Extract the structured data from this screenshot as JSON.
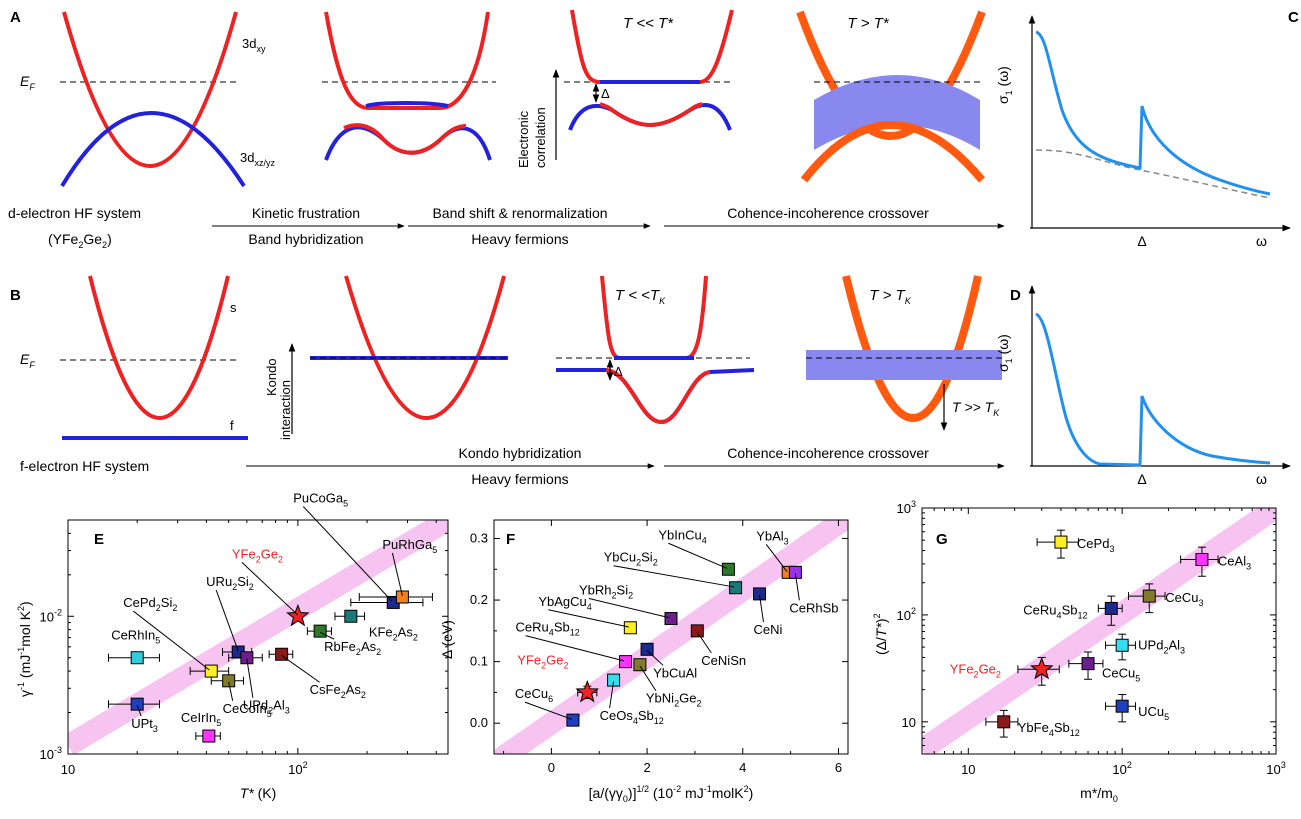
{
  "panels": {
    "A": "A",
    "B": "B",
    "C": "C",
    "D": "D",
    "E": "E",
    "F": "F",
    "G": "G"
  },
  "row_a": {
    "band_upper": "3d",
    "band_upper_sub": "xy",
    "band_lower": "3d",
    "band_lower_sub": "xz/yz",
    "ef": "E",
    "ef_sub": "F",
    "title_low_t": "T << T*",
    "title_high_t": "T > T*",
    "delta": "Δ",
    "corr_line1": "Electronic",
    "corr_line2": "correlation",
    "system_line1": "d-electron HF system",
    "system_line2_pre": "(YFe",
    "system_line2_sub1": "2",
    "system_line2_mid": "Ge",
    "system_line2_sub2": "2",
    "system_line2_post": ")",
    "arrow1_top": "Kinetic frustration",
    "arrow1_bottom": "Band hybridization",
    "arrow2_top": "Band shift & renormalization",
    "arrow2_bottom": "Heavy fermions",
    "arrow3_top": "Cohence-incoherence crossover"
  },
  "row_b": {
    "band_s": "s",
    "band_f": "f",
    "ef": "E",
    "ef_sub": "F",
    "kondo_line1": "Kondo",
    "kondo_line2": "interaction",
    "title_low_t": "T < <T",
    "title_low_t_sub": "K",
    "title_high_t": "T > T",
    "title_high_t_sub": "K",
    "down_label": "T >> T",
    "down_label_sub": "K",
    "delta": "Δ",
    "system": "f-electron HF system",
    "arrow2_top": "Kondo  hybridization",
    "arrow2_bottom": "Heavy fermions",
    "arrow3_top": "Cohence-incoherence crossover"
  },
  "conductivity": {
    "ylabel": "σ",
    "ylabel_sub": "1",
    "ylabel_post": " (ω)",
    "x_gap": "Δ",
    "x_omega": "ω"
  },
  "chart_data": [
    {
      "panel": "E",
      "type": "scatter",
      "xlabel": "T* (K)",
      "ylabel": "γ-1 (mJ-1mol K2)",
      "xscale": "log",
      "yscale": "log",
      "xlim": [
        10,
        450
      ],
      "ylim": [
        0.001,
        0.05
      ],
      "xticks": [
        "10",
        "10^2"
      ],
      "yticks": [
        "10^-3",
        "10^-2"
      ],
      "trend_band": [
        [
          10,
          0.00115
        ],
        [
          450,
          0.05
        ]
      ],
      "points": [
        {
          "name": "UPt3",
          "label": [
            "UPt",
            "3"
          ],
          "x": 20,
          "y": 0.0023,
          "xerr": 5,
          "color": "#1f3fbf"
        },
        {
          "name": "CeRhIn5",
          "label": [
            "CeRhIn",
            "5"
          ],
          "x": 20,
          "y": 0.005,
          "xerr": 5,
          "color": "#33ccdd"
        },
        {
          "name": "CeIrIn5",
          "label": [
            "CeIrIn",
            "5"
          ],
          "x": 41,
          "y": 0.00135,
          "xerr": 5,
          "color": "#ff33ff"
        },
        {
          "name": "CePd2Si2",
          "label": [
            "CePd",
            "2",
            "Si",
            "2"
          ],
          "x": 42,
          "y": 0.004,
          "xerr": 8,
          "color": "#ffee22"
        },
        {
          "name": "CeCoIn5",
          "label": [
            "CeCoIn",
            "5"
          ],
          "x": 50,
          "y": 0.0034,
          "xerr": 8,
          "color": "#807a2a"
        },
        {
          "name": "URu2Si2",
          "label": [
            "URu",
            "2",
            "Si",
            "2"
          ],
          "x": 55,
          "y": 0.0055,
          "xerr": 8,
          "color": "#1c2a8c"
        },
        {
          "name": "UPd2Al3",
          "label": [
            "UPd",
            "2",
            "Al",
            "3"
          ],
          "x": 60,
          "y": 0.005,
          "xerr": 10,
          "color": "#6a1f8a"
        },
        {
          "name": "CsFe2As2",
          "label": [
            "CsFe",
            "2",
            "As",
            "2"
          ],
          "x": 85,
          "y": 0.0053,
          "xerr": 10,
          "color": "#8a1a1a"
        },
        {
          "name": "YFe2Ge2",
          "label": [
            "YFe",
            "2",
            "Ge",
            "2"
          ],
          "x": 100,
          "y": 0.01,
          "xerr": 0,
          "color": "#ee2222",
          "star": true
        },
        {
          "name": "RbFe2As2",
          "label": [
            "RbFe",
            "2",
            "As",
            "2"
          ],
          "x": 125,
          "y": 0.0078,
          "xerr": 15,
          "color": "#2a7a2a"
        },
        {
          "name": "KFe2As2",
          "label": [
            "KFe",
            "2",
            "As",
            "2"
          ],
          "x": 170,
          "y": 0.01,
          "xerr": 25,
          "color": "#1a7a7a"
        },
        {
          "name": "PuCoGa5",
          "label": [
            "PuCoGa",
            "5"
          ],
          "x": 260,
          "y": 0.0126,
          "xerr": 90,
          "color": "#1c2a8c"
        },
        {
          "name": "PuRhGa5",
          "label": [
            "PuRhGa",
            "5"
          ],
          "x": 285,
          "y": 0.0138,
          "xerr": 100,
          "color": "#f08020"
        }
      ]
    },
    {
      "panel": "F",
      "type": "scatter",
      "xlabel": "[a/(γγ0)]1/2 (10-2 mJ-1molK2)",
      "ylabel": "Δ (eV)",
      "xlim": [
        -1.2,
        6.2
      ],
      "ylim": [
        -0.05,
        0.33
      ],
      "xticks": [
        0,
        2,
        4,
        6
      ],
      "yticks": [
        0.0,
        0.1,
        0.2,
        0.3
      ],
      "trend_band": [
        [
          -1.2,
          -0.065
        ],
        [
          6.2,
          0.335
        ]
      ],
      "points": [
        {
          "name": "CeCu6",
          "label": [
            "CeCu",
            "6"
          ],
          "x": 0.45,
          "y": 0.005,
          "color": "#1f3fbf"
        },
        {
          "name": "YFe2Ge2",
          "label": [
            "YFe",
            "2",
            "Ge",
            "2"
          ],
          "x": 0.75,
          "y": 0.05,
          "xerr": 0.2,
          "yerr": 0.01,
          "color": "#ee2222",
          "star": true
        },
        {
          "name": "CeOs4Sb12",
          "label": [
            "CeOs",
            "4",
            "Sb",
            "12"
          ],
          "x": 1.3,
          "y": 0.07,
          "color": "#33ddee"
        },
        {
          "name": "CeRu4Sb12",
          "label": [
            "CeRu",
            "4",
            "Sb",
            "12"
          ],
          "x": 1.55,
          "y": 0.1,
          "color": "#ff33ff"
        },
        {
          "name": "YbNi2Ge2",
          "label": [
            "YbNi",
            "2",
            "Ge",
            "2"
          ],
          "x": 1.85,
          "y": 0.095,
          "color": "#807a2a"
        },
        {
          "name": "YbCuAl",
          "label": [
            "YbCuAl"
          ],
          "x": 2.0,
          "y": 0.12,
          "color": "#1c2a8c"
        },
        {
          "name": "YbAgCu4",
          "label": [
            "YbAgCu",
            "4"
          ],
          "x": 1.65,
          "y": 0.155,
          "color": "#ffee22"
        },
        {
          "name": "YbRh2Si2",
          "label": [
            "YbRh",
            "2",
            "Si",
            "2"
          ],
          "x": 2.5,
          "y": 0.17,
          "color": "#6a1f8a"
        },
        {
          "name": "CeNiSn",
          "label": [
            "CeNiSn"
          ],
          "x": 3.05,
          "y": 0.15,
          "color": "#8a1a1a"
        },
        {
          "name": "YbInCu4",
          "label": [
            "YbInCu",
            "4"
          ],
          "x": 3.7,
          "y": 0.25,
          "color": "#2a7a2a"
        },
        {
          "name": "YbCu2Si2",
          "label": [
            "YbCu",
            "2",
            "Si",
            "2"
          ],
          "x": 3.85,
          "y": 0.22,
          "color": "#1a7a7a"
        },
        {
          "name": "CeNi",
          "label": [
            "CeNi"
          ],
          "x": 4.35,
          "y": 0.21,
          "color": "#1c2a8c"
        },
        {
          "name": "YbAl3",
          "label": [
            "YbAl",
            "3"
          ],
          "x": 4.95,
          "y": 0.245,
          "color": "#f08020"
        },
        {
          "name": "CeRhSb",
          "label": [
            "CeRhSb"
          ],
          "x": 5.1,
          "y": 0.245,
          "color": "#9933ee"
        }
      ]
    },
    {
      "panel": "G",
      "type": "scatter",
      "xlabel": "m*/m0",
      "ylabel": "(Δ/T*)2",
      "xscale": "log",
      "yscale": "log",
      "xlim": [
        5,
        1000
      ],
      "ylim": [
        5,
        1000
      ],
      "xticks": [
        "10",
        "10^2",
        "10^3"
      ],
      "yticks": [
        "10",
        "10^2",
        "10^3"
      ],
      "trend_band": [
        [
          5,
          5.5
        ],
        [
          1000,
          1000
        ]
      ],
      "points": [
        {
          "name": "YbFe4Sb12",
          "label": [
            "YbFe",
            "4",
            "Sb",
            "12"
          ],
          "x": 17,
          "y": 10,
          "xerr": 4,
          "yerr": 2.8,
          "color": "#8a1a1a"
        },
        {
          "name": "YFe2Ge2",
          "label": [
            "YFe",
            "2",
            "Ge",
            "2"
          ],
          "x": 30,
          "y": 31,
          "xerr": 9,
          "yerr": 9,
          "color": "#ee2222",
          "star": true
        },
        {
          "name": "CeCu5",
          "label": [
            "CeCu",
            "5"
          ],
          "x": 60,
          "y": 35,
          "xerr": 15,
          "yerr": 10,
          "color": "#6a1f8a"
        },
        {
          "name": "UCu5",
          "label": [
            "UCu",
            "5"
          ],
          "x": 100,
          "y": 14,
          "xerr": 22,
          "yerr": 4,
          "color": "#1f3fbf"
        },
        {
          "name": "UPd2Al3",
          "label": [
            "UPd",
            "2",
            "Al",
            "3"
          ],
          "x": 100,
          "y": 52,
          "xerr": 22,
          "yerr": 14,
          "color": "#33ddee"
        },
        {
          "name": "CeRu4Sb12",
          "label": [
            "CeRu",
            "4",
            "Sb",
            "12"
          ],
          "x": 85,
          "y": 115,
          "xerr": 15,
          "yerr": 35,
          "color": "#1c2a8c"
        },
        {
          "name": "CeCu3",
          "label": [
            "CeCu",
            "3"
          ],
          "x": 150,
          "y": 150,
          "xerr": 40,
          "yerr": 45,
          "color": "#807a2a"
        },
        {
          "name": "CePd3",
          "label": [
            "CePd",
            "3"
          ],
          "x": 40,
          "y": 480,
          "xerr": 12,
          "yerr": 140,
          "color": "#ffee22"
        },
        {
          "name": "CeAl3",
          "label": [
            "CeAl",
            "3"
          ],
          "x": 330,
          "y": 330,
          "xerr": 90,
          "yerr": 100,
          "color": "#ff33ff"
        }
      ]
    }
  ]
}
